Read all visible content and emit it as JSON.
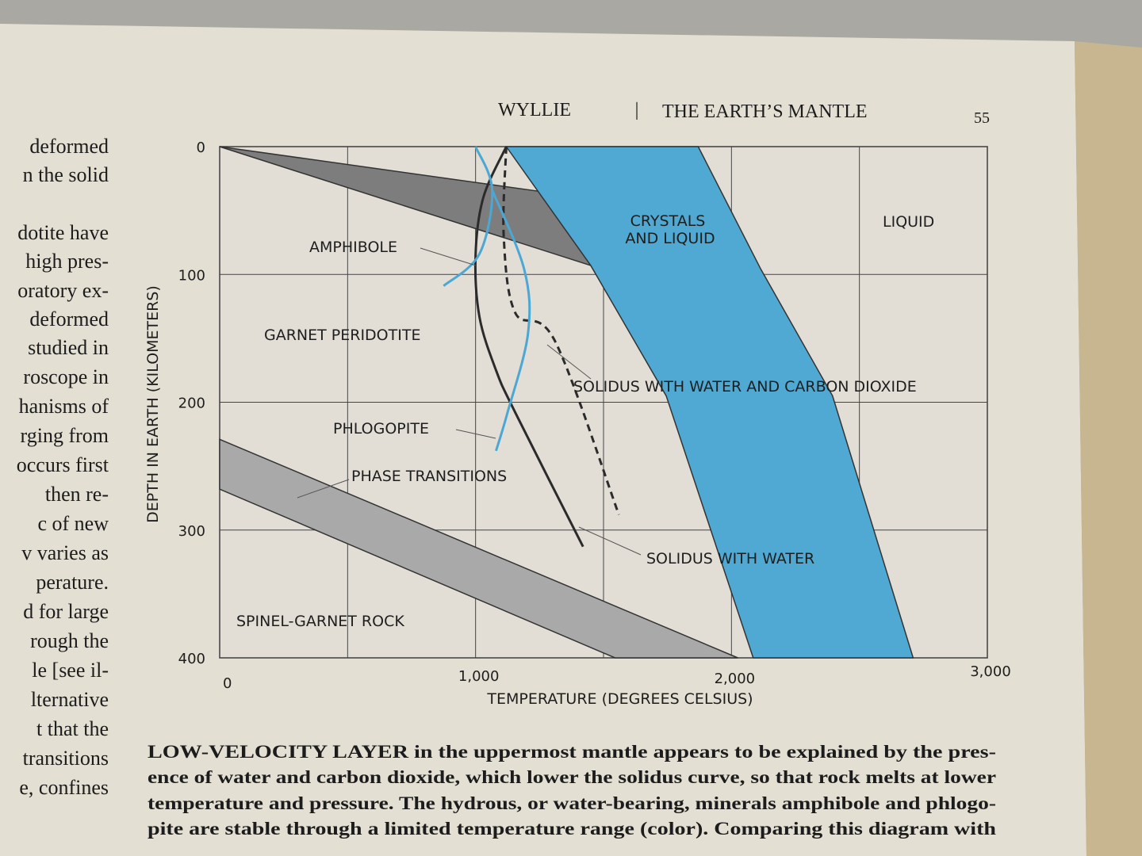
{
  "header": {
    "author": "WYLLIE",
    "divider": "|",
    "title": "THE EARTH’S MANTLE",
    "page_number": "55"
  },
  "left_column": [
    "deformed",
    "n the solid",
    "dotite have",
    "high pres-",
    "oratory ex-",
    "deformed",
    "studied in",
    "roscope in",
    "hanisms of",
    "rging from",
    "occurs first",
    "then re-",
    "c of new",
    "v varies as",
    "perature.",
    "d for large",
    "rough the",
    "le [see il-",
    "lternative",
    "t that the",
    "transitions",
    "e, confines"
  ],
  "caption": {
    "lead": "LOW-VELOCITY LAYER",
    "lines": [
      " in the uppermost mantle appears to be explained by the pres-",
      "ence of water and carbon dioxide, which lower the solidus curve, so that rock melts at lower",
      "temperature and pressure. The hydrous, or water-bearing, minerals amphibole and phlogo-",
      "pite are stable through a limited temperature range (color). Comparing this diagram with"
    ]
  },
  "chart_data": {
    "type": "phase-diagram",
    "xlabel": "TEMPERATURE (DEGREES CELSIUS)",
    "ylabel": "DEPTH IN EARTH (KILOMETERS)",
    "xlim": [
      0,
      3000
    ],
    "ylim": [
      0,
      400
    ],
    "y_inverted": true,
    "xticks": [
      0,
      {
        "value": 1000,
        "label": "1,000"
      },
      {
        "value": 2000,
        "label": "2,000"
      },
      {
        "value": 3000,
        "label": "3,000"
      }
    ],
    "x_minor_grid": [
      500,
      1500,
      2500
    ],
    "yticks": [
      0,
      100,
      200,
      300,
      400
    ],
    "grid": true,
    "areas": [
      {
        "color": "#7d7d7d",
        "x": [
          0,
          1250,
          1290,
          1450,
          0
        ],
        "y": [
          0,
          35,
          40,
          93,
          0
        ]
      },
      {
        "color": "#4fa9d2",
        "x": [
          1120,
          1450,
          1745,
          2085,
          2710,
          2395,
          2115,
          1870
        ],
        "y": [
          0,
          93,
          195,
          400,
          400,
          195,
          96,
          0
        ]
      },
      {
        "color": "#a9a9a9",
        "x": [
          0,
          2025,
          1545,
          0
        ],
        "y": [
          229,
          400,
          400,
          268
        ]
      }
    ],
    "curves": [
      {
        "color": "#2b2b2b",
        "dash": false,
        "x": [
          1120,
          1030,
          1000,
          1015,
          1080,
          1155,
          1420
        ],
        "y": [
          0,
          40,
          85,
          133,
          175,
          208,
          313
        ]
      },
      {
        "color": "#2b2b2b",
        "dash": true,
        "x": [
          1120,
          1110,
          1155,
          1310,
          1560
        ],
        "y": [
          0,
          70,
          130,
          152,
          288
        ]
      },
      {
        "color": "#4ba7d4",
        "dash": false,
        "x": [
          1000,
          1065,
          1015,
          875
        ],
        "y": [
          0,
          34,
          84,
          109
        ]
      },
      {
        "color": "#4ba7d4",
        "dash": false,
        "x": [
          1065,
          1190,
          1205,
          1125,
          1080
        ],
        "y": [
          34,
          96,
          146,
          208,
          238
        ]
      }
    ],
    "annotations": [
      "LIQUID",
      "CRYSTALS",
      "AND LIQUID",
      "AMPHIBOLE",
      "GARNET PERIDOTITE",
      "SOLIDUS WITH WATER AND CARBON DIOXIDE",
      "PHLOGOPITE",
      "PHASE TRANSITIONS",
      "SOLIDUS WITH WATER",
      "SPINEL-GARNET ROCK"
    ]
  }
}
